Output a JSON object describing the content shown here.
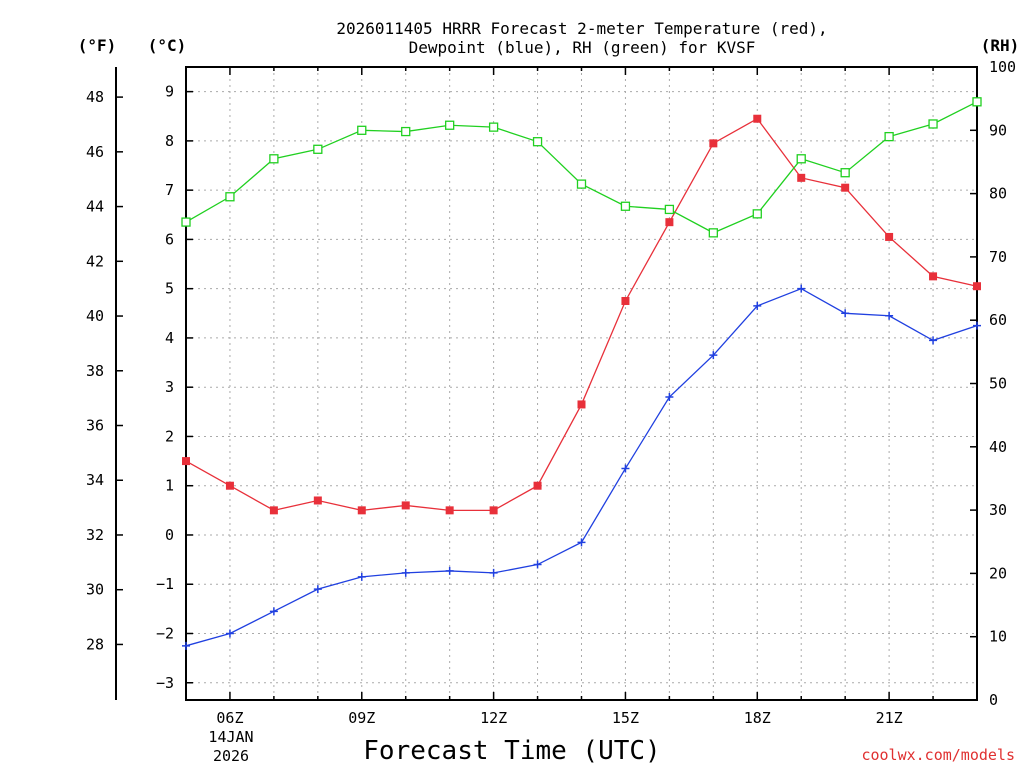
{
  "chart_data": {
    "type": "line",
    "title_line1": "2026011405 HRRR Forecast 2-meter Temperature (red),",
    "title_line2": "Dewpoint (blue), RH (green) for KVSF",
    "xlabel": "Forecast Time (UTC)",
    "credit": "coolwx.com/models",
    "units": {
      "f": "(°F)",
      "c": "(°C)",
      "rh": "(RH)"
    },
    "x_hours": [
      5,
      6,
      7,
      8,
      9,
      10,
      11,
      12,
      13,
      14,
      15,
      16,
      17,
      18,
      19,
      20,
      21,
      22,
      23
    ],
    "xlim": [
      5,
      23
    ],
    "x_ticks": [
      {
        "hour": 6,
        "label": "06Z"
      },
      {
        "hour": 9,
        "label": "09Z"
      },
      {
        "hour": 12,
        "label": "12Z"
      },
      {
        "hour": 15,
        "label": "15Z"
      },
      {
        "hour": 18,
        "label": "18Z"
      },
      {
        "hour": 21,
        "label": "21Z"
      }
    ],
    "date_label_line1": "14JAN",
    "date_label_line2": "2026",
    "y_celsius": {
      "lim": [
        -3.35,
        9.5
      ],
      "ticks": [
        -3,
        -2,
        -1,
        0,
        1,
        2,
        3,
        4,
        5,
        6,
        7,
        8,
        9
      ]
    },
    "y_fahrenheit": {
      "ticks": [
        28,
        30,
        32,
        34,
        36,
        38,
        40,
        42,
        44,
        46,
        48
      ]
    },
    "y_rh": {
      "lim": [
        0,
        100
      ],
      "ticks": [
        0,
        10,
        20,
        30,
        40,
        50,
        60,
        70,
        80,
        90,
        100
      ]
    },
    "series": [
      {
        "name": "Temperature",
        "axis": "celsius",
        "color": "#e8303a",
        "marker": "filled-square",
        "values": [
          1.5,
          1.0,
          0.5,
          0.7,
          0.5,
          0.6,
          0.5,
          0.5,
          1.0,
          2.65,
          4.75,
          6.35,
          7.95,
          8.45,
          7.25,
          7.05,
          6.05,
          5.25,
          5.05
        ]
      },
      {
        "name": "Dewpoint",
        "axis": "celsius",
        "color": "#2040e0",
        "marker": "plus",
        "values": [
          -2.25,
          -2.0,
          -1.55,
          -1.1,
          -0.85,
          -0.77,
          -0.73,
          -0.77,
          -0.6,
          -0.15,
          1.35,
          2.8,
          3.65,
          4.65,
          5.0,
          4.5,
          4.45,
          3.95,
          4.25
        ]
      },
      {
        "name": "RH",
        "axis": "rh",
        "color": "#20d020",
        "marker": "open-square",
        "values": [
          75.5,
          79.5,
          85.5,
          87.0,
          90.0,
          89.8,
          90.8,
          90.5,
          88.2,
          81.5,
          78.0,
          77.5,
          73.8,
          76.8,
          85.5,
          83.3,
          89.0,
          91.0,
          94.5
        ]
      }
    ]
  }
}
